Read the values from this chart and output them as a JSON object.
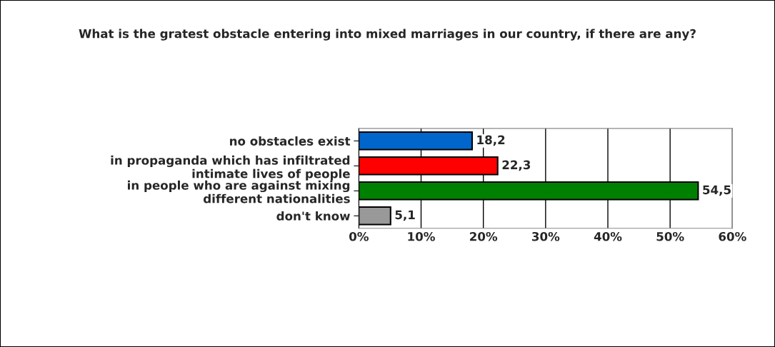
{
  "chart_data": {
    "type": "bar",
    "orientation": "horizontal",
    "title": "What is the gratest obstacle entering into mixed marriages in our country, if there are any?",
    "categories": [
      "no obstacles exist",
      "in propaganda which has infiltrated\nintimate lives of people",
      "in people who are against mixing\ndifferent nationalities",
      "don't know"
    ],
    "values": [
      18.2,
      22.3,
      54.5,
      5.1
    ],
    "value_labels": [
      "18,2",
      "22,3",
      "54,5",
      "5,1"
    ],
    "colors": [
      "#0066cc",
      "#ff0000",
      "#008000",
      "#999999"
    ],
    "xlim": [
      0,
      60
    ],
    "xticks": [
      {
        "value": 0,
        "label": "0%"
      },
      {
        "value": 10,
        "label": "10%"
      },
      {
        "value": 20,
        "label": "20%"
      },
      {
        "value": 30,
        "label": "30%"
      },
      {
        "value": 40,
        "label": "40%"
      },
      {
        "value": 50,
        "label": "50%"
      },
      {
        "value": 60,
        "label": "60%"
      }
    ],
    "grid": "x",
    "legend": false
  }
}
